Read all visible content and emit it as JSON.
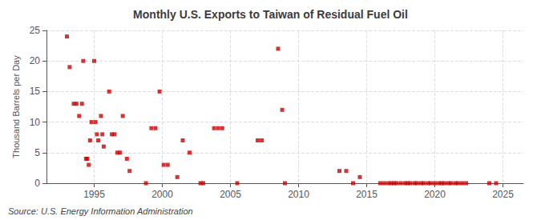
{
  "chart_data": {
    "type": "scatter",
    "title": "Monthly U.S. Exports to Taiwan of Residual Fuel Oil",
    "ylabel": "Thousand Barrels per Day",
    "annotations": [
      "Source: U.S. Energy Information Administration"
    ],
    "color": "#cc0000",
    "marker": "square",
    "grid": true,
    "xlim": [
      1991.5,
      2026.5
    ],
    "ylim": [
      0,
      25
    ],
    "xticks": [
      1995,
      2000,
      2005,
      2010,
      2015,
      2020,
      2025
    ],
    "yticks": [
      0,
      5,
      10,
      15,
      20,
      25
    ],
    "x": [
      1993.0,
      1993.2,
      1993.5,
      1993.7,
      1993.9,
      1994.1,
      1994.2,
      1994.4,
      1994.5,
      1994.6,
      1994.7,
      1994.8,
      1995.0,
      1995.1,
      1995.2,
      1995.3,
      1995.5,
      1995.6,
      1995.7,
      1996.1,
      1996.3,
      1996.5,
      1996.7,
      1996.9,
      1997.1,
      1997.4,
      1997.6,
      1998.8,
      1999.2,
      1999.5,
      1999.8,
      2000.1,
      2000.4,
      2001.1,
      2001.5,
      2002.0,
      2002.8,
      2003.0,
      2003.8,
      2004.1,
      2004.4,
      2005.5,
      2007.0,
      2007.3,
      2008.5,
      2008.8,
      2009.0,
      2013.0,
      2013.5,
      2014.0,
      2014.5,
      2016.0,
      2016.3,
      2016.6,
      2016.8,
      2017.0,
      2017.2,
      2017.5,
      2017.8,
      2018.0,
      2018.2,
      2018.5,
      2018.7,
      2019.0,
      2019.2,
      2019.5,
      2019.7,
      2020.0,
      2020.3,
      2020.5,
      2020.7,
      2021.0,
      2021.2,
      2021.5,
      2021.7,
      2022.0,
      2022.3,
      2024.0,
      2024.5
    ],
    "values": [
      24,
      19,
      13,
      13,
      11,
      13,
      20,
      4,
      4,
      3,
      7,
      10,
      20,
      10,
      8,
      7,
      11,
      8,
      6,
      15,
      8,
      8,
      5,
      5,
      11,
      4,
      2,
      0,
      9,
      9,
      15,
      3,
      3,
      1,
      7,
      5,
      0,
      0,
      9,
      9,
      9,
      0,
      7,
      7,
      22,
      12,
      0,
      2,
      2,
      0,
      1,
      0,
      0,
      0,
      0,
      0,
      0,
      0,
      0,
      0,
      0,
      0,
      0,
      0,
      0,
      0,
      0,
      0,
      0,
      0,
      0,
      0,
      0,
      0,
      0,
      0,
      0,
      0,
      0
    ]
  }
}
